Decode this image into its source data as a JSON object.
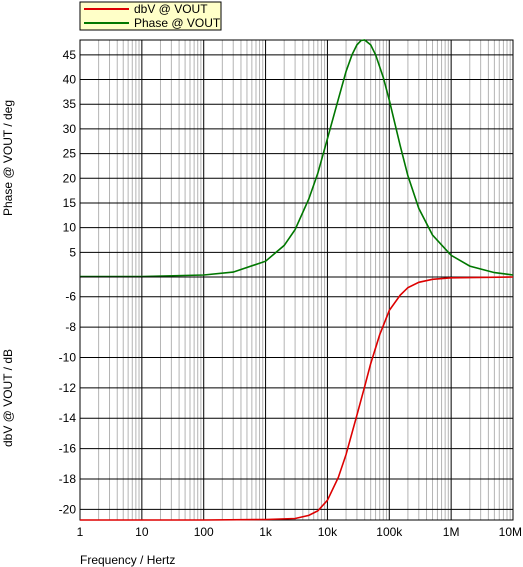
{
  "legend": {
    "items": [
      {
        "label": "dbV @ VOUT",
        "color": "#dd0000"
      },
      {
        "label": "Phase @ VOUT",
        "color": "#007700"
      }
    ]
  },
  "chart_data": [
    {
      "type": "line",
      "ylabel": "Phase @ VOUT / deg",
      "xscale": "log",
      "xlim": [
        1,
        10000000
      ],
      "ylim": [
        0,
        48
      ],
      "yticks": [
        5,
        10,
        15,
        20,
        25,
        30,
        35,
        40,
        45
      ],
      "grid": true,
      "series": [
        {
          "name": "Phase @ VOUT",
          "color": "#007700",
          "x": [
            1,
            10,
            100,
            300,
            1000,
            2000,
            3000,
            5000,
            7000,
            10000,
            15000,
            20000,
            25000,
            30000,
            35000,
            40000,
            50000,
            60000,
            80000,
            100000,
            150000,
            200000,
            300000,
            500000,
            1000000,
            2000000,
            5000000,
            10000000
          ],
          "y": [
            0.1,
            0.1,
            0.4,
            1.0,
            3.2,
            6.4,
            9.6,
            15.8,
            21.0,
            28.0,
            36.0,
            41.6,
            45.0,
            47.0,
            47.9,
            48.0,
            47.0,
            45.0,
            40.4,
            35.8,
            26.6,
            20.5,
            13.9,
            8.5,
            4.4,
            2.2,
            0.9,
            0.4
          ]
        }
      ]
    },
    {
      "type": "line",
      "xlabel": "Frequency / Hertz",
      "ylabel": "dbV @ VOUT / dB",
      "xscale": "log",
      "xlim": [
        1,
        10000000
      ],
      "ylim": [
        -20.7,
        -4.7
      ],
      "xticks": [
        1,
        10,
        100,
        1000,
        10000,
        100000,
        1000000,
        10000000
      ],
      "xtick_labels": [
        "1",
        "10",
        "100",
        "1k",
        "10k",
        "100k",
        "1M",
        "10M"
      ],
      "yticks": [
        -20,
        -18,
        -16,
        -14,
        -12,
        -10,
        -8,
        -6
      ],
      "grid": true,
      "series": [
        {
          "name": "dbV @ VOUT",
          "color": "#dd0000",
          "x": [
            1,
            10,
            100,
            1000,
            3000,
            5000,
            7000,
            10000,
            15000,
            20000,
            30000,
            40000,
            50000,
            70000,
            100000,
            150000,
            200000,
            300000,
            500000,
            1000000,
            10000000
          ],
          "y": [
            -20.7,
            -20.7,
            -20.7,
            -20.67,
            -20.6,
            -20.4,
            -20.1,
            -19.4,
            -17.9,
            -16.4,
            -13.8,
            -11.9,
            -10.4,
            -8.5,
            -6.9,
            -5.9,
            -5.4,
            -5.05,
            -4.85,
            -4.75,
            -4.7
          ]
        }
      ]
    }
  ]
}
